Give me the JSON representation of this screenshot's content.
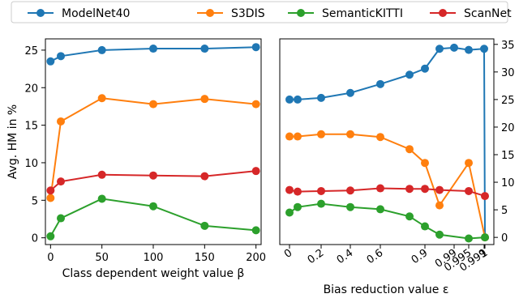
{
  "legend": {
    "placement": "top-center",
    "entries": [
      {
        "label": "ModelNet40",
        "color": "#1f77b4"
      },
      {
        "label": "S3DIS",
        "color": "#ff7f0e"
      },
      {
        "label": "SemanticKITTI",
        "color": "#2ca02c"
      },
      {
        "label": "ScanNet",
        "color": "#d62728"
      }
    ]
  },
  "chart_data": [
    {
      "type": "line",
      "xlabel": "Class dependent weight value β",
      "ylabel": "Avg. HM in %",
      "x": [
        0,
        10,
        50,
        100,
        150,
        200
      ],
      "xticks": [
        0,
        50,
        100,
        150,
        200
      ],
      "yticks": [
        0,
        5,
        10,
        15,
        20,
        25
      ],
      "xlim": [
        -5,
        205
      ],
      "ylim": [
        -0.9,
        26.5
      ],
      "y_axis_side": "left",
      "grid": false,
      "series": [
        {
          "name": "ModelNet40",
          "color": "#1f77b4",
          "values": [
            23.5,
            24.2,
            25.0,
            25.2,
            25.2,
            25.4
          ]
        },
        {
          "name": "S3DIS",
          "color": "#ff7f0e",
          "values": [
            5.3,
            15.5,
            18.6,
            17.8,
            18.5,
            17.8
          ]
        },
        {
          "name": "SemanticKITTI",
          "color": "#2ca02c",
          "values": [
            0.2,
            2.6,
            5.2,
            4.2,
            1.6,
            1.0
          ]
        },
        {
          "name": "ScanNet",
          "color": "#d62728",
          "values": [
            6.3,
            7.5,
            8.4,
            8.3,
            8.2,
            8.9
          ]
        }
      ]
    },
    {
      "type": "line",
      "xlabel": "Bias reduction value ε",
      "ylabel": "",
      "x": [
        "0",
        "0.05",
        "0.2",
        "0.4",
        "0.6",
        "0.8",
        "0.9",
        "0.95",
        "0.99",
        "0.995",
        "0.999",
        "1"
      ],
      "xticks": [
        "0",
        "0.2",
        "0.4",
        "0.6",
        "0.9",
        "0.99",
        "0.995",
        "0.999",
        "1"
      ],
      "yticks": [
        0,
        5,
        10,
        15,
        20,
        25,
        30,
        35
      ],
      "ylim": [
        -1.3,
        36
      ],
      "y_axis_side": "right",
      "grid": false,
      "series": [
        {
          "name": "ModelNet40",
          "color": "#1f77b4",
          "values": [
            25.0,
            25.0,
            25.3,
            26.2,
            27.8,
            29.5,
            30.6,
            34.2,
            34.4,
            34.0,
            34.2,
            0.0
          ]
        },
        {
          "name": "S3DIS",
          "color": "#ff7f0e",
          "values": [
            18.3,
            18.3,
            18.7,
            18.7,
            18.2,
            16.0,
            13.5,
            5.8,
            null,
            13.5,
            null,
            0.0
          ]
        },
        {
          "name": "SemanticKITTI",
          "color": "#2ca02c",
          "values": [
            4.5,
            5.5,
            6.1,
            5.5,
            5.1,
            3.8,
            2.0,
            0.5,
            null,
            -0.2,
            null,
            0.0
          ]
        },
        {
          "name": "ScanNet",
          "color": "#d62728",
          "values": [
            8.6,
            8.3,
            8.4,
            8.5,
            8.9,
            8.8,
            8.8,
            8.6,
            null,
            8.4,
            null,
            7.5
          ]
        }
      ]
    }
  ]
}
